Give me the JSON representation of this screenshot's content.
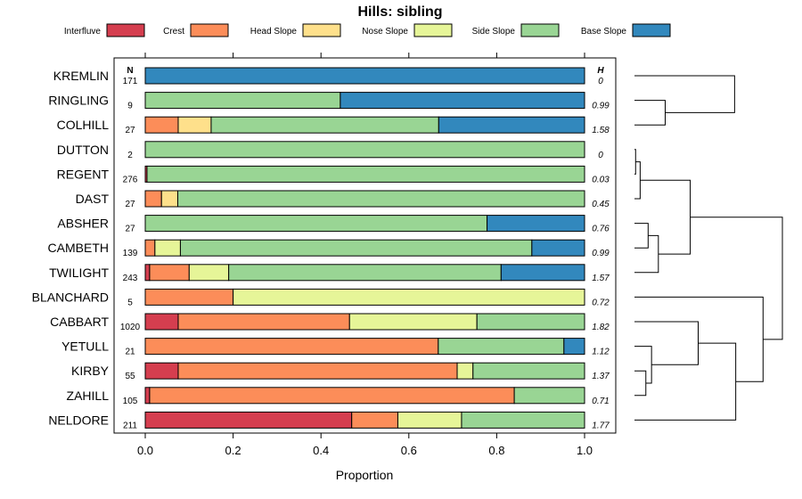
{
  "chart_data": {
    "type": "bar",
    "stacked": true,
    "orientation": "horizontal",
    "title": "Hills: sibling",
    "xlabel": "Proportion",
    "xlim": [
      0,
      1
    ],
    "xticks": [
      "0.0",
      "0.2",
      "0.4",
      "0.6",
      "0.8",
      "1.0"
    ],
    "n_header": "N",
    "h_header": "H",
    "legend": [
      {
        "name": "Interfluve",
        "color": "#D53E4F"
      },
      {
        "name": "Crest",
        "color": "#FC8D59"
      },
      {
        "name": "Head Slope",
        "color": "#FEE08B"
      },
      {
        "name": "Nose Slope",
        "color": "#E6F598"
      },
      {
        "name": "Side Slope",
        "color": "#99D594"
      },
      {
        "name": "Base Slope",
        "color": "#3288BD"
      }
    ],
    "categories": [
      "KREMLIN",
      "RINGLING",
      "COLHILL",
      "DUTTON",
      "REGENT",
      "DAST",
      "ABSHER",
      "CAMBETH",
      "TWILIGHT",
      "BLANCHARD",
      "CABBART",
      "YETULL",
      "KIRBY",
      "ZAHILL",
      "NELDORE"
    ],
    "n": [
      "171",
      "9",
      "27",
      "2",
      "276",
      "27",
      "27",
      "139",
      "243",
      "5",
      "1020",
      "21",
      "55",
      "105",
      "211"
    ],
    "h": [
      "0",
      "0.99",
      "1.58",
      "0",
      "0.03",
      "0.45",
      "0.76",
      "0.99",
      "1.57",
      "0.72",
      "1.82",
      "1.12",
      "1.37",
      "0.71",
      "1.77"
    ],
    "series": [
      {
        "name": "Interfluve",
        "values": [
          0,
          0,
          0,
          0,
          0.004,
          0,
          0,
          0,
          0.01,
          0,
          0.075,
          0,
          0.075,
          0.01,
          0.47
        ]
      },
      {
        "name": "Crest",
        "values": [
          0,
          0,
          0.075,
          0,
          0,
          0.037,
          0,
          0.022,
          0.09,
          0.2,
          0.39,
          0.667,
          0.635,
          0.83,
          0.105
        ]
      },
      {
        "name": "Head Slope",
        "values": [
          0,
          0,
          0.075,
          0,
          0,
          0.037,
          0,
          0,
          0,
          0,
          0,
          0,
          0,
          0,
          0
        ]
      },
      {
        "name": "Nose Slope",
        "values": [
          0,
          0,
          0,
          0,
          0,
          0,
          0,
          0.058,
          0.09,
          0.8,
          0.29,
          0,
          0.036,
          0,
          0.145
        ]
      },
      {
        "name": "Side Slope",
        "values": [
          0,
          0.444,
          0.518,
          1,
          0.996,
          0.926,
          0.778,
          0.8,
          0.62,
          0,
          0.245,
          0.286,
          0.254,
          0.16,
          0.28
        ]
      },
      {
        "name": "Base Slope",
        "values": [
          1,
          0.556,
          0.332,
          0,
          0,
          0,
          0.222,
          0.12,
          0.19,
          0,
          0,
          0.047,
          0,
          0,
          0
        ]
      }
    ],
    "dendrogram": {
      "leaf_order": [
        "KREMLIN",
        "RINGLING",
        "COLHILL",
        "DUTTON",
        "REGENT",
        "DAST",
        "ABSHER",
        "CAMBETH",
        "TWILIGHT",
        "BLANCHARD",
        "CABBART",
        "YETULL",
        "KIRBY",
        "ZAHILL",
        "NELDORE"
      ],
      "merges": [
        {
          "a": "DUTTON",
          "b": "REGENT",
          "height": 0.01
        },
        {
          "a": "KIRBY",
          "b": "ZAHILL",
          "height": 0.1
        },
        {
          "a": "DUTTON+REGENT",
          "b": "DAST",
          "height": 0.05
        },
        {
          "a": "ABSHER",
          "b": "CAMBETH",
          "height": 0.12
        },
        {
          "a": "ABSHER+CAMBETH",
          "b": "TWILIGHT",
          "height": 0.21
        },
        {
          "a": "YETULL",
          "b": "KIRBY+ZAHILL",
          "height": 0.15
        },
        {
          "a": "RINGLING",
          "b": "COLHILL",
          "height": 0.27
        },
        {
          "a": "CABBART",
          "b": "YETULL+KIRBY+ZAHILL",
          "height": 0.56
        },
        {
          "a": "DUTTON+REGENT+DAST",
          "b": "ABSHER+CAMBETH+TWILIGHT",
          "height": 0.49
        },
        {
          "a": "CABBART+YETULL+KIRBY+ZAHILL",
          "b": "NELDORE",
          "height": 0.89
        },
        {
          "a": "KREMLIN",
          "b": "RINGLING+COLHILL",
          "height": 0.88
        },
        {
          "a": "BLANCHARD",
          "b": "CABBART+YETULL+KIRBY+ZAHILL+NELDORE",
          "height": 1.13
        },
        {
          "a": "DUTTON+REGENT+DAST+ABSHER+CAMBETH+TWILIGHT",
          "b": "BLANCHARD+CABBART+YETULL+KIRBY+ZAHILL+NELDORE",
          "height": 1.3
        }
      ]
    }
  }
}
